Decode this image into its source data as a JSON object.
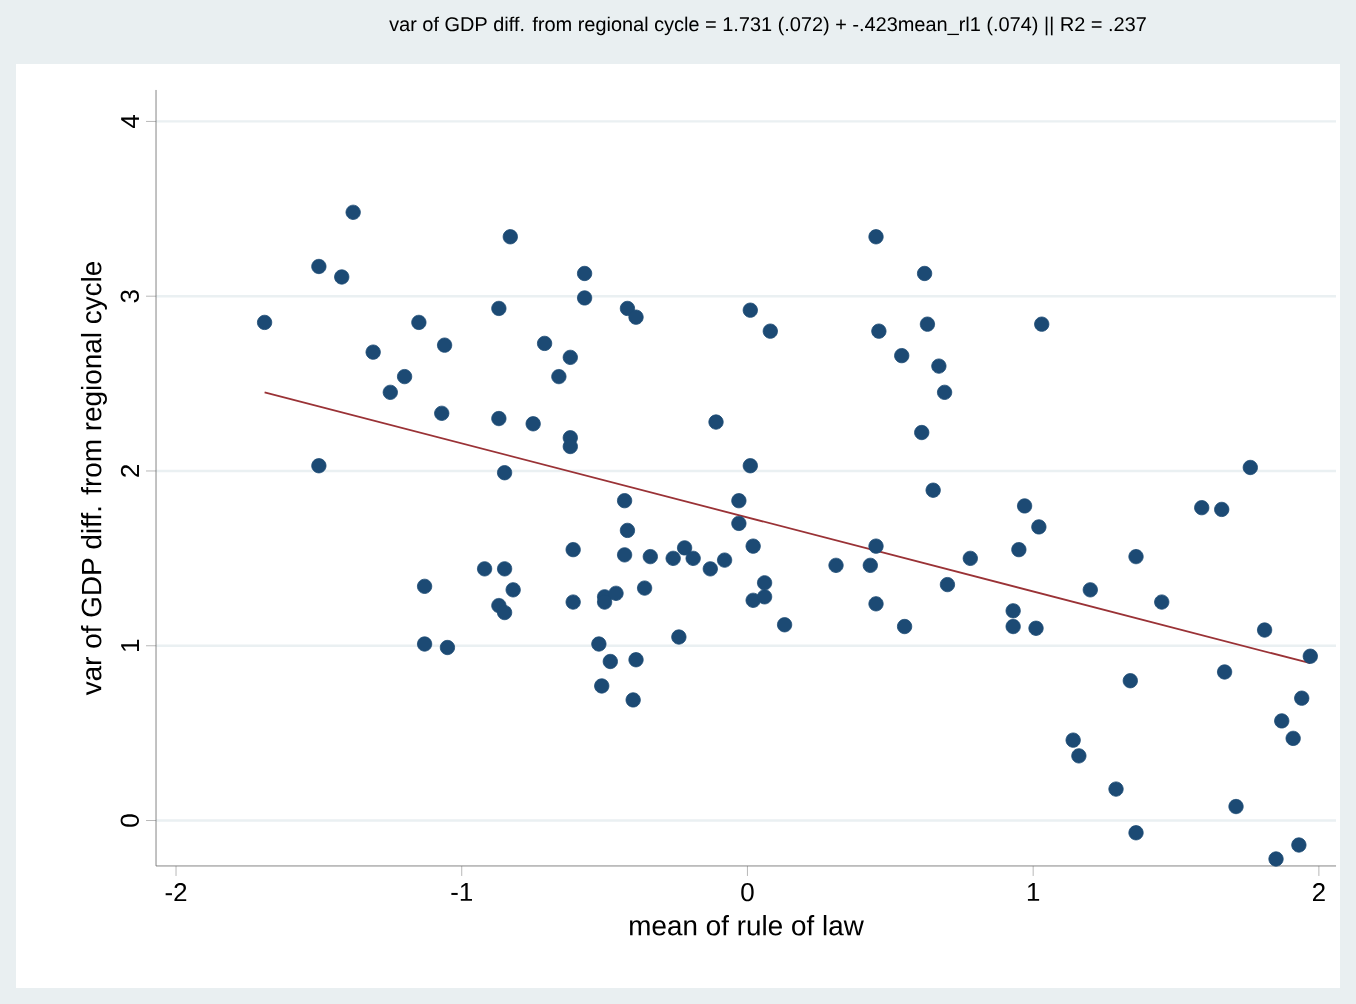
{
  "chart_data": {
    "type": "scatter",
    "title": "var of GDP diff. from regional cycle = 1.731 (.072) + -.423mean_rl1 (.074) || R2 = .237",
    "xlabel": "mean of rule of law",
    "ylabel": "var of GDP diff. from regional cycle",
    "xlim": [
      -2.07,
      2.06
    ],
    "ylim": [
      -0.26,
      4.18
    ],
    "xticks": [
      -2,
      -1,
      0,
      1,
      2
    ],
    "yticks": [
      0,
      1,
      2,
      3,
      4
    ],
    "grid": "y",
    "series": [
      {
        "marker": "circle",
        "color": "#1c4a74",
        "x": [
          -1.69,
          -1.5,
          -1.5,
          -1.42,
          -1.38,
          -1.31,
          -1.25,
          -1.2,
          -1.15,
          -1.06,
          -1.07,
          -1.13,
          -1.13,
          -1.05,
          -0.87,
          -0.87,
          -0.83,
          -0.85,
          -0.92,
          -0.85,
          -0.82,
          -0.87,
          -0.85,
          -0.75,
          -0.71,
          -0.66,
          -0.62,
          -0.62,
          -0.62,
          -0.61,
          -0.61,
          -0.57,
          -0.57,
          -0.52,
          -0.51,
          -0.48,
          -0.5,
          -0.5,
          -0.46,
          -0.43,
          -0.42,
          -0.43,
          -0.42,
          -0.39,
          -0.39,
          -0.4,
          -0.36,
          -0.34,
          -0.26,
          -0.24,
          -0.22,
          -0.19,
          -0.13,
          -0.11,
          -0.08,
          -0.03,
          -0.03,
          0.01,
          0.02,
          0.02,
          0.01,
          0.08,
          0.06,
          0.06,
          0.13,
          0.31,
          0.43,
          0.45,
          0.46,
          0.45,
          0.45,
          0.55,
          0.54,
          0.62,
          0.63,
          0.61,
          0.67,
          0.69,
          0.65,
          0.7,
          0.78,
          1.03,
          0.97,
          1.02,
          0.95,
          0.93,
          0.93,
          1.01,
          1.2,
          1.36,
          1.45,
          1.34,
          1.14,
          1.16,
          1.29,
          1.36,
          1.59,
          1.66,
          1.76,
          1.81,
          1.67,
          1.71,
          1.97,
          1.94,
          1.87,
          1.91,
          1.85,
          1.93
        ],
        "values": [
          2.85,
          3.17,
          2.03,
          3.11,
          3.48,
          2.68,
          2.45,
          2.54,
          2.85,
          2.72,
          2.33,
          1.34,
          1.01,
          0.99,
          2.93,
          2.3,
          3.34,
          1.99,
          1.44,
          1.44,
          1.32,
          1.23,
          1.19,
          2.27,
          2.73,
          2.54,
          2.65,
          2.19,
          2.14,
          1.55,
          1.25,
          3.13,
          2.99,
          1.01,
          0.77,
          0.91,
          1.28,
          1.25,
          1.3,
          1.83,
          1.66,
          1.52,
          2.93,
          2.88,
          0.92,
          0.69,
          1.33,
          1.51,
          1.5,
          1.05,
          1.56,
          1.5,
          1.44,
          2.28,
          1.49,
          1.83,
          1.7,
          2.92,
          1.57,
          1.26,
          2.03,
          2.8,
          1.28,
          1.36,
          1.12,
          1.46,
          1.46,
          3.34,
          2.8,
          1.57,
          1.24,
          1.11,
          2.66,
          3.13,
          2.84,
          2.22,
          2.6,
          2.45,
          1.89,
          1.35,
          1.5,
          2.84,
          1.8,
          1.68,
          1.55,
          1.2,
          1.11,
          1.1,
          1.32,
          1.51,
          1.25,
          0.8,
          0.46,
          0.37,
          0.18,
          -0.07,
          1.79,
          1.78,
          2.02,
          1.09,
          0.85,
          0.08,
          0.94,
          0.7,
          0.57,
          0.47,
          -0.22,
          -0.14
        ]
      },
      {
        "type": "line",
        "marker": "none",
        "color": "#9a3236",
        "x": [
          -1.69,
          1.97
        ],
        "values": [
          2.45,
          0.9
        ]
      }
    ]
  }
}
